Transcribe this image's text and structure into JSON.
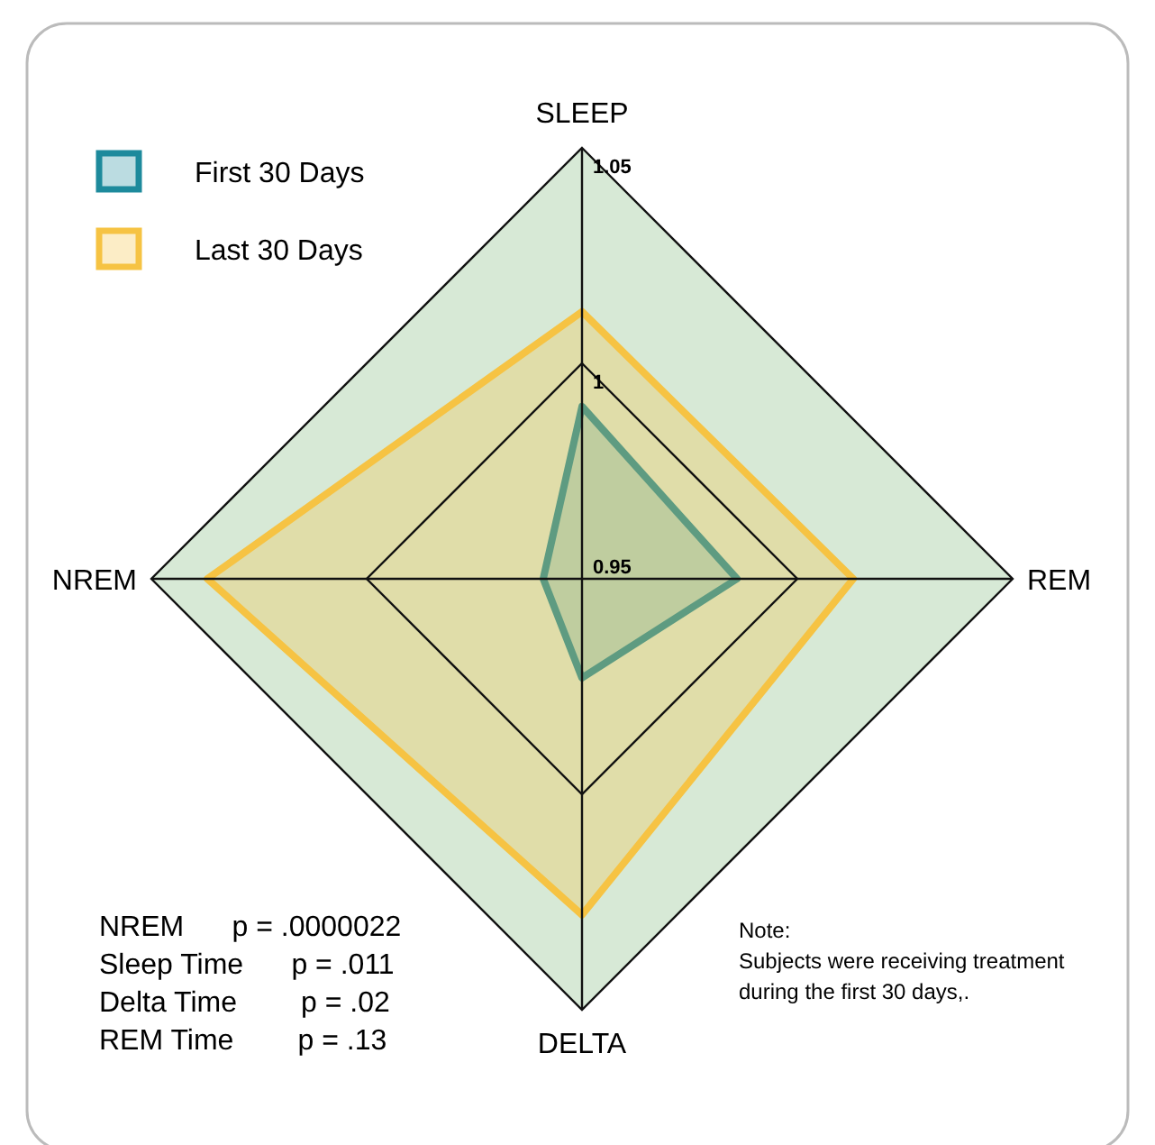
{
  "chart_data": {
    "type": "radar",
    "categories": [
      "SLEEP",
      "REM",
      "DELTA",
      "NREM"
    ],
    "series": [
      {
        "name": "First 30 Days",
        "color": "#1d8a9c",
        "values": [
          0.99,
          0.986,
          0.973,
          0.959
        ]
      },
      {
        "name": "Last 30 Days",
        "color": "#f6c343",
        "values": [
          1.012,
          1.013,
          1.028,
          1.037
        ]
      }
    ],
    "ylim": [
      0.95,
      1.05
    ],
    "yticks": [
      0.95,
      1,
      1.05
    ],
    "legend": "top left",
    "grid": true,
    "annotations": [
      "NREM      p = .0000022",
      "Sleep Time      p = .011",
      "Delta Time        p = .02",
      "REM Time        p = .13",
      "Note:",
      "Subjects were receiving treatment",
      "during the first 30 days,."
    ]
  }
}
